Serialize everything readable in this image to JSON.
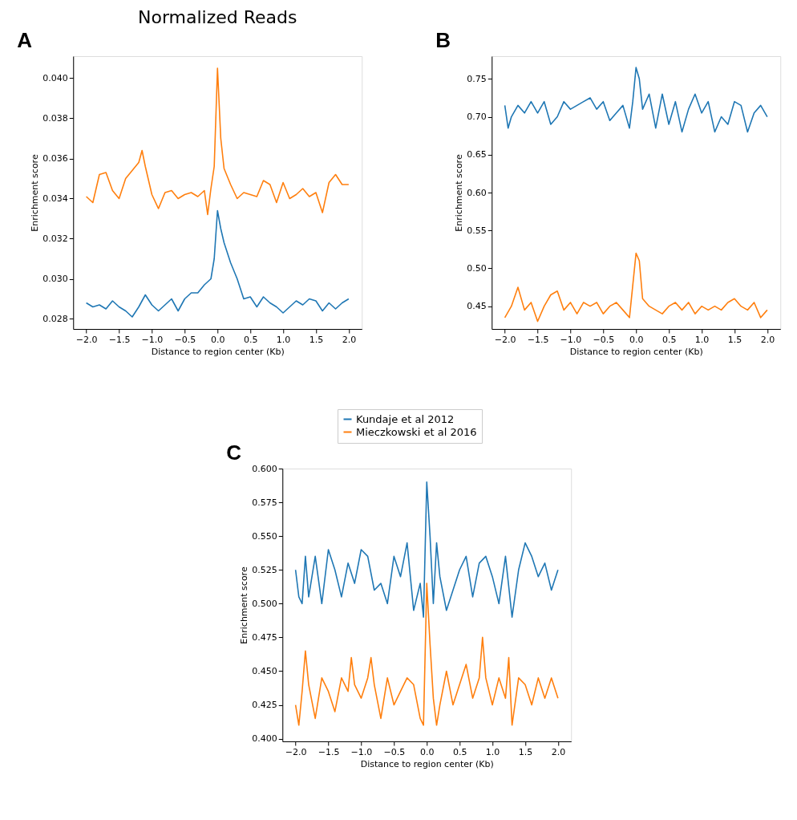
{
  "chart_data": [
    {
      "type": "line",
      "title": "Normalized Reads",
      "xlabel": "Distance to region center (Kb)",
      "ylabel": "Enrichment score",
      "annotations": [
        "A"
      ],
      "legend": "bottom",
      "grid": false,
      "xlim": [
        -2.2,
        2.2
      ],
      "xticks": [
        {
          "value": -2,
          "label": "−2.0"
        },
        {
          "value": -1.5,
          "label": "−1.5"
        },
        {
          "value": -1,
          "label": "−1.0"
        },
        {
          "value": -0.5,
          "label": "−0.5"
        },
        {
          "value": 0,
          "label": "0.0"
        },
        {
          "value": 0.5,
          "label": "0.5"
        },
        {
          "value": 1,
          "label": "1.0"
        },
        {
          "value": 1.5,
          "label": "1.5"
        },
        {
          "value": 2,
          "label": "2.0"
        }
      ],
      "ylim": [
        0.0275,
        0.0411
      ],
      "yticks": [
        0.028,
        {
          "value": 0.03,
          "label": "0.030"
        },
        0.032,
        0.034,
        0.036,
        0.038,
        {
          "value": 0.04,
          "label": "0.040"
        }
      ],
      "series": [
        {
          "name": "Kundaje et al 2012",
          "color": "#1f77b4",
          "x": [
            -2.0,
            -1.9,
            -1.8,
            -1.7,
            -1.6,
            -1.5,
            -1.4,
            -1.3,
            -1.2,
            -1.1,
            -1.0,
            -0.9,
            -0.8,
            -0.7,
            -0.6,
            -0.5,
            -0.4,
            -0.3,
            -0.2,
            -0.1,
            -0.05,
            0.0,
            0.05,
            0.1,
            0.2,
            0.3,
            0.4,
            0.5,
            0.6,
            0.7,
            0.8,
            0.9,
            1.0,
            1.1,
            1.2,
            1.3,
            1.4,
            1.5,
            1.6,
            1.7,
            1.8,
            1.9,
            2.0
          ],
          "values": [
            0.0288,
            0.0286,
            0.0287,
            0.0285,
            0.0289,
            0.0286,
            0.0284,
            0.0281,
            0.0286,
            0.0292,
            0.0287,
            0.0284,
            0.0287,
            0.029,
            0.0284,
            0.029,
            0.0293,
            0.0293,
            0.0297,
            0.03,
            0.031,
            0.0334,
            0.0325,
            0.0318,
            0.0308,
            0.03,
            0.029,
            0.0291,
            0.0286,
            0.0291,
            0.0288,
            0.0286,
            0.0283,
            0.0286,
            0.0289,
            0.0287,
            0.029,
            0.0289,
            0.0284,
            0.0288,
            0.0285,
            0.0288,
            0.029
          ]
        },
        {
          "name": "Mieczkowski et al 2016",
          "color": "#ff7f0e",
          "x": [
            -2.0,
            -1.9,
            -1.8,
            -1.7,
            -1.6,
            -1.5,
            -1.4,
            -1.3,
            -1.2,
            -1.15,
            -1.1,
            -1.0,
            -0.9,
            -0.8,
            -0.7,
            -0.6,
            -0.5,
            -0.4,
            -0.3,
            -0.2,
            -0.15,
            -0.1,
            -0.05,
            0.0,
            0.05,
            0.1,
            0.2,
            0.3,
            0.4,
            0.5,
            0.6,
            0.7,
            0.8,
            0.9,
            1.0,
            1.1,
            1.2,
            1.3,
            1.4,
            1.5,
            1.6,
            1.7,
            1.8,
            1.9,
            2.0
          ],
          "values": [
            0.0341,
            0.0338,
            0.0352,
            0.0353,
            0.0344,
            0.034,
            0.035,
            0.0354,
            0.0358,
            0.0364,
            0.0356,
            0.0342,
            0.0335,
            0.0343,
            0.0344,
            0.034,
            0.0342,
            0.0343,
            0.0341,
            0.0344,
            0.0332,
            0.0345,
            0.0356,
            0.0405,
            0.037,
            0.0355,
            0.0347,
            0.034,
            0.0343,
            0.0342,
            0.0341,
            0.0349,
            0.0347,
            0.0338,
            0.0348,
            0.034,
            0.0342,
            0.0345,
            0.0341,
            0.0343,
            0.0333,
            0.0348,
            0.0352,
            0.0347,
            0.0347
          ]
        }
      ]
    },
    {
      "type": "line",
      "xlabel": "Distance to region center (Kb)",
      "ylabel": "Enrichment score",
      "annotations": [
        "B"
      ],
      "grid": false,
      "xlim": [
        -2.2,
        2.2
      ],
      "xticks": [
        {
          "value": -2,
          "label": "−2.0"
        },
        {
          "value": -1.5,
          "label": "−1.5"
        },
        {
          "value": -1,
          "label": "−1.0"
        },
        {
          "value": -0.5,
          "label": "−0.5"
        },
        {
          "value": 0,
          "label": "0.0"
        },
        {
          "value": 0.5,
          "label": "0.5"
        },
        {
          "value": 1,
          "label": "1.0"
        },
        {
          "value": 1.5,
          "label": "1.5"
        },
        {
          "value": 2,
          "label": "2.0"
        }
      ],
      "ylim": [
        0.42,
        0.78
      ],
      "yticks": [
        0.45,
        {
          "value": 0.5,
          "label": "0.50"
        },
        0.55,
        {
          "value": 0.6,
          "label": "0.60"
        },
        0.65,
        {
          "value": 0.7,
          "label": "0.70"
        },
        0.75
      ],
      "series": [
        {
          "name": "Kundaje et al 2012",
          "color": "#1f77b4",
          "x": [
            -2.0,
            -1.95,
            -1.9,
            -1.8,
            -1.7,
            -1.6,
            -1.5,
            -1.4,
            -1.3,
            -1.2,
            -1.1,
            -1.0,
            -0.9,
            -0.8,
            -0.7,
            -0.6,
            -0.5,
            -0.4,
            -0.3,
            -0.2,
            -0.1,
            -0.05,
            0.0,
            0.05,
            0.1,
            0.2,
            0.3,
            0.4,
            0.5,
            0.6,
            0.7,
            0.8,
            0.9,
            1.0,
            1.1,
            1.2,
            1.3,
            1.4,
            1.5,
            1.6,
            1.7,
            1.8,
            1.9,
            2.0
          ],
          "values": [
            0.715,
            0.685,
            0.7,
            0.715,
            0.705,
            0.72,
            0.705,
            0.72,
            0.69,
            0.7,
            0.72,
            0.71,
            0.715,
            0.72,
            0.725,
            0.71,
            0.72,
            0.695,
            0.705,
            0.715,
            0.685,
            0.72,
            0.765,
            0.75,
            0.71,
            0.73,
            0.685,
            0.73,
            0.69,
            0.72,
            0.68,
            0.71,
            0.73,
            0.705,
            0.72,
            0.68,
            0.7,
            0.69,
            0.72,
            0.715,
            0.68,
            0.705,
            0.715,
            0.7
          ]
        },
        {
          "name": "Mieczkowski et al 2016",
          "color": "#ff7f0e",
          "x": [
            -2.0,
            -1.9,
            -1.8,
            -1.7,
            -1.6,
            -1.5,
            -1.4,
            -1.3,
            -1.2,
            -1.1,
            -1.0,
            -0.9,
            -0.8,
            -0.7,
            -0.6,
            -0.5,
            -0.4,
            -0.3,
            -0.2,
            -0.1,
            0.0,
            0.05,
            0.1,
            0.2,
            0.3,
            0.4,
            0.5,
            0.6,
            0.7,
            0.8,
            0.9,
            1.0,
            1.1,
            1.2,
            1.3,
            1.4,
            1.5,
            1.6,
            1.7,
            1.8,
            1.9,
            2.0
          ],
          "values": [
            0.435,
            0.45,
            0.475,
            0.445,
            0.455,
            0.43,
            0.45,
            0.465,
            0.47,
            0.445,
            0.455,
            0.44,
            0.455,
            0.45,
            0.455,
            0.44,
            0.45,
            0.455,
            0.445,
            0.435,
            0.52,
            0.51,
            0.46,
            0.45,
            0.445,
            0.44,
            0.45,
            0.455,
            0.445,
            0.455,
            0.44,
            0.45,
            0.445,
            0.45,
            0.445,
            0.455,
            0.46,
            0.45,
            0.445,
            0.455,
            0.435,
            0.445
          ]
        }
      ]
    },
    {
      "type": "line",
      "xlabel": "Distance to region center (Kb)",
      "ylabel": "Enrichment score",
      "annotations": [
        "C"
      ],
      "grid": false,
      "xlim": [
        -2.2,
        2.2
      ],
      "xticks": [
        {
          "value": -2,
          "label": "−2.0"
        },
        {
          "value": -1.5,
          "label": "−1.5"
        },
        {
          "value": -1,
          "label": "−1.0"
        },
        {
          "value": -0.5,
          "label": "−0.5"
        },
        {
          "value": 0,
          "label": "0.0"
        },
        {
          "value": 0.5,
          "label": "0.5"
        },
        {
          "value": 1,
          "label": "1.0"
        },
        {
          "value": 1.5,
          "label": "1.5"
        },
        {
          "value": 2,
          "label": "2.0"
        }
      ],
      "ylim": [
        0.398,
        0.6
      ],
      "yticks": [
        {
          "value": 0.4,
          "label": "0.400"
        },
        0.425,
        {
          "value": 0.45,
          "label": "0.450"
        },
        0.475,
        {
          "value": 0.5,
          "label": "0.500"
        },
        0.525,
        {
          "value": 0.55,
          "label": "0.550"
        },
        0.575,
        {
          "value": 0.6,
          "label": "0.600"
        }
      ],
      "series": [
        {
          "name": "Kundaje et al 2012",
          "color": "#1f77b4",
          "x": [
            -2.0,
            -1.95,
            -1.9,
            -1.85,
            -1.8,
            -1.7,
            -1.6,
            -1.5,
            -1.4,
            -1.3,
            -1.2,
            -1.1,
            -1.0,
            -0.9,
            -0.8,
            -0.7,
            -0.6,
            -0.5,
            -0.4,
            -0.3,
            -0.2,
            -0.1,
            -0.05,
            0.0,
            0.05,
            0.1,
            0.15,
            0.2,
            0.3,
            0.4,
            0.5,
            0.6,
            0.7,
            0.8,
            0.9,
            1.0,
            1.1,
            1.2,
            1.3,
            1.4,
            1.5,
            1.6,
            1.7,
            1.8,
            1.9,
            2.0
          ],
          "values": [
            0.525,
            0.505,
            0.5,
            0.535,
            0.505,
            0.535,
            0.5,
            0.54,
            0.525,
            0.505,
            0.53,
            0.515,
            0.54,
            0.535,
            0.51,
            0.515,
            0.5,
            0.535,
            0.52,
            0.545,
            0.495,
            0.515,
            0.49,
            0.59,
            0.55,
            0.5,
            0.545,
            0.52,
            0.495,
            0.51,
            0.525,
            0.535,
            0.505,
            0.53,
            0.535,
            0.52,
            0.5,
            0.535,
            0.49,
            0.525,
            0.545,
            0.535,
            0.52,
            0.53,
            0.51,
            0.525
          ]
        },
        {
          "name": "Mieczkowski et al 2016",
          "color": "#ff7f0e",
          "x": [
            -2.0,
            -1.95,
            -1.9,
            -1.85,
            -1.8,
            -1.7,
            -1.6,
            -1.5,
            -1.4,
            -1.3,
            -1.2,
            -1.15,
            -1.1,
            -1.0,
            -0.9,
            -0.85,
            -0.8,
            -0.7,
            -0.6,
            -0.5,
            -0.4,
            -0.3,
            -0.2,
            -0.1,
            -0.05,
            0.0,
            0.05,
            0.1,
            0.15,
            0.2,
            0.3,
            0.4,
            0.5,
            0.6,
            0.7,
            0.8,
            0.85,
            0.9,
            1.0,
            1.1,
            1.2,
            1.25,
            1.3,
            1.4,
            1.5,
            1.6,
            1.7,
            1.8,
            1.9,
            2.0
          ],
          "values": [
            0.425,
            0.41,
            0.435,
            0.465,
            0.44,
            0.415,
            0.445,
            0.435,
            0.42,
            0.445,
            0.435,
            0.46,
            0.44,
            0.43,
            0.445,
            0.46,
            0.44,
            0.415,
            0.445,
            0.425,
            0.435,
            0.445,
            0.44,
            0.415,
            0.41,
            0.515,
            0.47,
            0.43,
            0.41,
            0.425,
            0.45,
            0.425,
            0.44,
            0.455,
            0.43,
            0.445,
            0.475,
            0.445,
            0.425,
            0.445,
            0.43,
            0.46,
            0.41,
            0.445,
            0.44,
            0.425,
            0.445,
            0.43,
            0.445,
            0.43
          ]
        }
      ]
    }
  ]
}
